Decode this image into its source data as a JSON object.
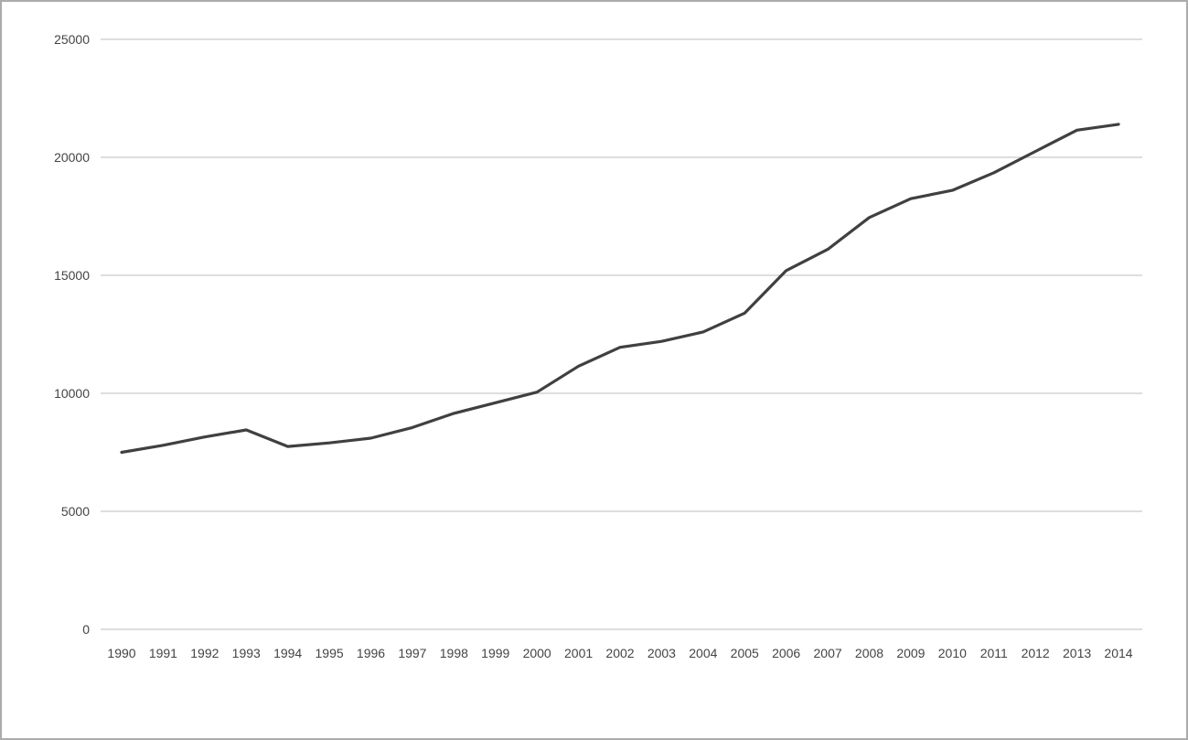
{
  "page": {
    "background": "#ffffff",
    "border_color": "#ababab"
  },
  "chart_data": {
    "type": "line",
    "title": "",
    "xlabel": "",
    "ylabel": "",
    "categories": [
      "1990",
      "1991",
      "1992",
      "1993",
      "1994",
      "1995",
      "1996",
      "1997",
      "1998",
      "1999",
      "2000",
      "2001",
      "2002",
      "2003",
      "2004",
      "2005",
      "2006",
      "2007",
      "2008",
      "2009",
      "2010",
      "2011",
      "2012",
      "2013",
      "2014"
    ],
    "series": [
      {
        "name": "series-1",
        "color": "#404040",
        "values": [
          7500,
          7800,
          8150,
          8450,
          7750,
          7900,
          8100,
          8550,
          9150,
          9600,
          10050,
          11150,
          11950,
          12200,
          12600,
          13400,
          15200,
          16100,
          17450,
          18250,
          18600,
          19350,
          20250,
          21150,
          21400
        ]
      }
    ],
    "y_ticks": [
      0,
      5000,
      10000,
      15000,
      20000,
      25000
    ],
    "ylim": [
      0,
      25000
    ],
    "grid": true,
    "gridline_color": "#d3d3d3",
    "tick_label_color": "#444444",
    "legend_position": "none"
  }
}
